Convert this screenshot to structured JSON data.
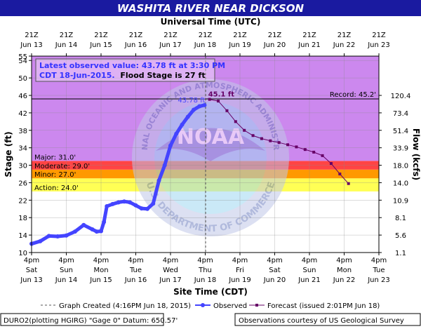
{
  "header": {
    "title": "WASHITA RIVER NEAR DICKSON",
    "top_axis_title": "Universal Time (UTC)",
    "bottom_axis_title": "Site Time (CDT)",
    "left_axis_title": "Stage (ft)",
    "right_axis_title": "Flow (kcfs)"
  },
  "info_box": {
    "line1": "Latest observed value: 43.78 ft at 3:30 PM",
    "line2a": "CDT 18-Jun-2015.",
    "line2b": "Flood Stage is 27 ft"
  },
  "thresholds": {
    "major": "Major: 31.0'",
    "moderate": "Moderate: 29.0'",
    "minor": "Minor: 27.0'",
    "action": "Action: 24.0'",
    "record": "Record: 45.2'"
  },
  "annotations": {
    "observed_peak": "43.78 ft",
    "forecast_peak": "45.1 ft"
  },
  "watermark": {
    "top_arc": "NATIONAL OCEANIC AND ATMOSPHERIC ADMINISTRATION",
    "bottom_arc": "U.S. DEPARTMENT OF COMMERCE",
    "center": "NOAA"
  },
  "legend": {
    "created": "Graph Created (4:16PM Jun 18, 2015)",
    "observed": "Observed",
    "forecast": "Forecast (issued 2:01PM Jun 18)"
  },
  "footer": {
    "left": "DURO2(plotting HGIRG) \"Gage 0\" Datum:  650.57'",
    "right": "Observations courtesy of US Geological Survey"
  },
  "colors": {
    "title_bg": "#1a1aa0",
    "major": "#cc88ee",
    "moderate": "#ff4444",
    "minor": "#ff9900",
    "action": "#ffff55",
    "observed": "#4444ff",
    "forecast": "#660066"
  },
  "chart_data": {
    "type": "line",
    "title": "WASHITA RIVER NEAR DICKSON",
    "ylabel": "Stage (ft)",
    "y2label": "Flow (kcfs)",
    "xlabel": "Site Time (CDT)",
    "x2label": "Universal Time (UTC)",
    "ylim": [
      10,
      55
    ],
    "xlim": [
      "2015-06-13 16:00",
      "2015-06-23 16:00"
    ],
    "y_ticks": [
      10,
      14,
      18,
      22,
      26,
      30,
      34,
      38,
      42,
      46,
      50,
      54,
      55
    ],
    "y2_ticks": [
      {
        "stage": 10,
        "label": "1.1"
      },
      {
        "stage": 14,
        "label": "5.6"
      },
      {
        "stage": 18,
        "label": "8.1"
      },
      {
        "stage": 22,
        "label": "10.9"
      },
      {
        "stage": 26,
        "label": "14.0"
      },
      {
        "stage": 30,
        "label": "18.0"
      },
      {
        "stage": 34,
        "label": "33.9"
      },
      {
        "stage": 38,
        "label": "51.4"
      },
      {
        "stage": 42,
        "label": "73.4"
      },
      {
        "stage": 46,
        "label": "120.4"
      }
    ],
    "x_ticks_bottom": [
      {
        "time": "4pm",
        "day": "Sat",
        "date": "Jun 13"
      },
      {
        "time": "4pm",
        "day": "Sun",
        "date": "Jun 14"
      },
      {
        "time": "4pm",
        "day": "Mon",
        "date": "Jun 15"
      },
      {
        "time": "4pm",
        "day": "Tue",
        "date": "Jun 16"
      },
      {
        "time": "4pm",
        "day": "Wed",
        "date": "Jun 17"
      },
      {
        "time": "4pm",
        "day": "Thu",
        "date": "Jun 18"
      },
      {
        "time": "4pm",
        "day": "Fri",
        "date": "Jun 19"
      },
      {
        "time": "4pm",
        "day": "Sat",
        "date": "Jun 20"
      },
      {
        "time": "4pm",
        "day": "Sun",
        "date": "Jun 21"
      },
      {
        "time": "4pm",
        "day": "Mon",
        "date": "Jun 22"
      },
      {
        "time": "4pm",
        "day": "Tue",
        "date": "Jun 23"
      }
    ],
    "x_ticks_top": [
      {
        "time": "21Z",
        "date": "Jun 13"
      },
      {
        "time": "21Z",
        "date": "Jun 14"
      },
      {
        "time": "21Z",
        "date": "Jun 15"
      },
      {
        "time": "21Z",
        "date": "Jun 16"
      },
      {
        "time": "21Z",
        "date": "Jun 17"
      },
      {
        "time": "21Z",
        "date": "Jun 18"
      },
      {
        "time": "21Z",
        "date": "Jun 19"
      },
      {
        "time": "21Z",
        "date": "Jun 20"
      },
      {
        "time": "21Z",
        "date": "Jun 21"
      },
      {
        "time": "21Z",
        "date": "Jun 22"
      },
      {
        "time": "21Z",
        "date": "Jun 23"
      }
    ],
    "bands": [
      {
        "name": "Major",
        "from": 31,
        "to": 55
      },
      {
        "name": "Moderate",
        "from": 29,
        "to": 31
      },
      {
        "name": "Minor",
        "from": 27,
        "to": 29
      },
      {
        "name": "Action",
        "from": 24,
        "to": 27
      }
    ],
    "record_stage": 45.2,
    "graph_created": "2015-06-18 16:16",
    "series": [
      {
        "name": "Observed",
        "x": [
          "2015-06-13 16:00",
          "2015-06-13 22:00",
          "2015-06-14 04:00",
          "2015-06-14 10:00",
          "2015-06-14 16:00",
          "2015-06-14 22:00",
          "2015-06-15 04:00",
          "2015-06-15 10:00",
          "2015-06-15 13:00",
          "2015-06-15 16:00",
          "2015-06-15 18:00",
          "2015-06-15 20:00",
          "2015-06-16 00:00",
          "2015-06-16 04:00",
          "2015-06-16 08:00",
          "2015-06-16 12:00",
          "2015-06-16 16:00",
          "2015-06-16 20:00",
          "2015-06-17 00:00",
          "2015-06-17 04:00",
          "2015-06-17 08:00",
          "2015-06-17 12:00",
          "2015-06-17 16:00",
          "2015-06-17 20:00",
          "2015-06-18 00:00",
          "2015-06-18 04:00",
          "2015-06-18 08:00",
          "2015-06-18 12:00",
          "2015-06-18 15:30"
        ],
        "values": [
          12.0,
          12.6,
          13.8,
          13.7,
          13.9,
          14.8,
          16.3,
          15.3,
          14.8,
          14.9,
          17.0,
          20.6,
          21.1,
          21.5,
          21.7,
          21.5,
          20.8,
          20.1,
          20.0,
          21.2,
          26.5,
          30.0,
          34.5,
          37.2,
          39.3,
          41.1,
          42.7,
          43.5,
          43.78
        ]
      },
      {
        "name": "Forecast",
        "x": [
          "2015-06-18 19:00",
          "2015-06-19 01:00",
          "2015-06-19 07:00",
          "2015-06-19 13:00",
          "2015-06-19 19:00",
          "2015-06-20 01:00",
          "2015-06-20 07:00",
          "2015-06-20 13:00",
          "2015-06-20 19:00",
          "2015-06-21 01:00",
          "2015-06-21 07:00",
          "2015-06-21 13:00",
          "2015-06-21 19:00",
          "2015-06-22 01:00",
          "2015-06-22 07:00",
          "2015-06-22 13:00",
          "2015-06-22 19:00"
        ],
        "values": [
          45.1,
          44.7,
          42.5,
          40.0,
          38.0,
          36.8,
          36.1,
          35.6,
          35.2,
          34.7,
          34.2,
          33.6,
          33.0,
          32.2,
          30.4,
          28.0,
          25.8
        ]
      }
    ]
  }
}
